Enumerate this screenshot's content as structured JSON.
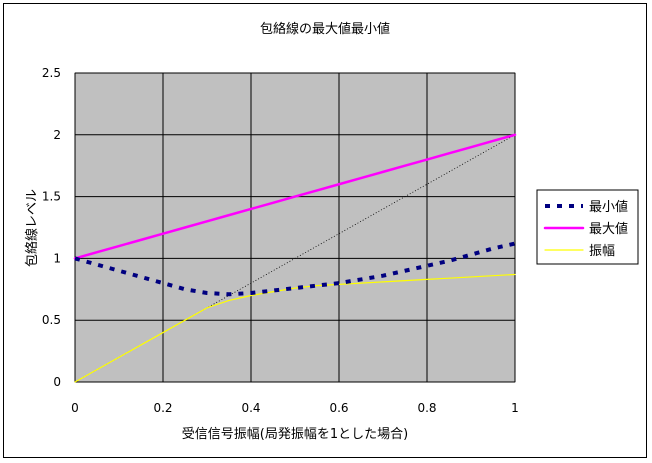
{
  "chart_data": {
    "type": "line",
    "title": "包絡線の最大値最小値",
    "xlabel": "受信信号振幅(局発振幅を1とした場合)",
    "ylabel": "包絡線レベル",
    "xlim": [
      0,
      1
    ],
    "ylim": [
      0,
      2.5
    ],
    "x_ticks": [
      "0",
      "0.2",
      "0.4",
      "0.6",
      "0.8",
      "1"
    ],
    "y_ticks": [
      "0",
      "0.5",
      "1",
      "1.5",
      "2",
      "2.5"
    ],
    "grid": true,
    "plot_background": "#c0c0c0",
    "legend_position": "right",
    "x": [
      0,
      0.05,
      0.1,
      0.15,
      0.2,
      0.25,
      0.3,
      0.35,
      0.4,
      0.45,
      0.5,
      0.55,
      0.6,
      0.65,
      0.7,
      0.75,
      0.8,
      0.85,
      0.9,
      0.95,
      1
    ],
    "series": [
      {
        "name": "最小値",
        "color": "#000080",
        "style": "dotted-heavy",
        "values": [
          1.0,
          0.95,
          0.9,
          0.85,
          0.8,
          0.75,
          0.72,
          0.71,
          0.72,
          0.74,
          0.76,
          0.78,
          0.8,
          0.83,
          0.86,
          0.9,
          0.94,
          0.98,
          1.03,
          1.08,
          1.12
        ]
      },
      {
        "name": "最大値",
        "color": "#ff00ff",
        "style": "solid-thick",
        "values": [
          1.0,
          1.05,
          1.1,
          1.15,
          1.2,
          1.25,
          1.3,
          1.35,
          1.4,
          1.45,
          1.5,
          1.55,
          1.6,
          1.65,
          1.7,
          1.75,
          1.8,
          1.85,
          1.9,
          1.95,
          2.0
        ]
      },
      {
        "name": "振幅",
        "color": "#ffff00",
        "style": "solid-thin",
        "values": [
          0.0,
          0.1,
          0.2,
          0.3,
          0.4,
          0.5,
          0.6,
          0.66,
          0.7,
          0.73,
          0.76,
          0.78,
          0.79,
          0.8,
          0.81,
          0.82,
          0.83,
          0.84,
          0.85,
          0.86,
          0.87
        ]
      },
      {
        "name": "",
        "color": "#000000",
        "style": "dotted-thin",
        "values": [
          0.0,
          0.1,
          0.2,
          0.3,
          0.4,
          0.5,
          0.6,
          0.7,
          0.8,
          0.9,
          1.0,
          1.1,
          1.2,
          1.3,
          1.4,
          1.5,
          1.6,
          1.7,
          1.8,
          1.9,
          2.0
        ]
      }
    ]
  }
}
